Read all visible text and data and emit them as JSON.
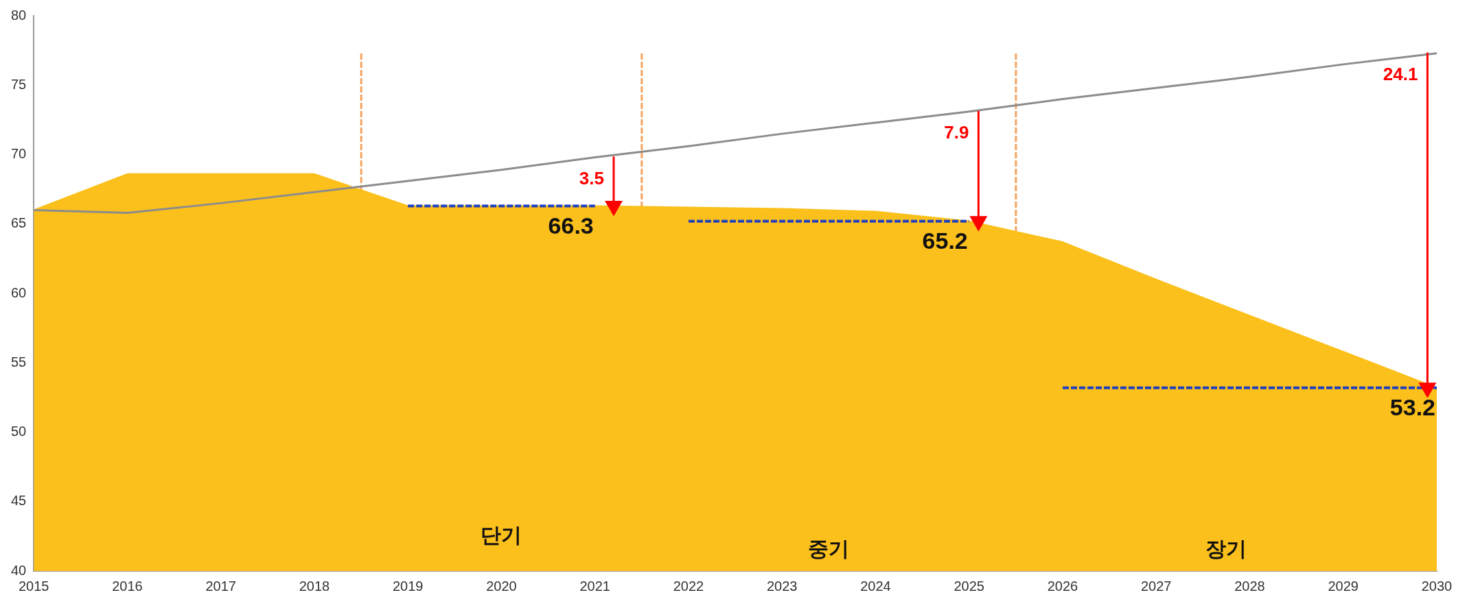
{
  "chart_data": {
    "type": "area",
    "xlim": [
      2015,
      2030
    ],
    "ylim": [
      40,
      80
    ],
    "xticks": [
      2015,
      2016,
      2017,
      2018,
      2019,
      2020,
      2021,
      2022,
      2023,
      2024,
      2025,
      2026,
      2027,
      2028,
      2029,
      2030
    ],
    "yticks": [
      40,
      45,
      50,
      55,
      60,
      65,
      70,
      75,
      80
    ],
    "grid": false,
    "legend": false,
    "marker": "none",
    "series": [
      {
        "color": "#fcc01c",
        "x": [
          2015,
          2016,
          2017,
          2018,
          2019,
          2020,
          2021,
          2022,
          2023,
          2024,
          2025,
          2026,
          2027,
          2028,
          2029,
          2030
        ],
        "values": [
          66,
          68.6,
          68.6,
          68.6,
          66.3,
          66.3,
          66.3,
          66.2,
          66.1,
          65.9,
          65.2,
          63.7,
          61,
          58.4,
          55.8,
          53.2
        ]
      },
      {
        "type": "line",
        "color": "#8c8c8c",
        "x": [
          2015,
          2016,
          2017,
          2018,
          2019,
          2020,
          2021,
          2022,
          2023,
          2024,
          2025,
          2026,
          2027,
          2028,
          2029,
          2030
        ],
        "values": [
          66,
          65.8,
          66.5,
          67.3,
          68.1,
          68.9,
          69.8,
          70.6,
          71.5,
          72.3,
          73.1,
          74,
          74.8,
          75.6,
          76.5,
          77.3
        ]
      },
      {
        "type": "line",
        "line_style": "dashed",
        "color": "#1f3fbf",
        "x": [
          2019,
          2021
        ],
        "values": [
          66.3,
          66.3
        ],
        "value_labels": [
          null,
          "66.3"
        ]
      },
      {
        "type": "line",
        "line_style": "dashed",
        "color": "#1f3fbf",
        "x": [
          2022,
          2025
        ],
        "values": [
          65.2,
          65.2
        ],
        "value_labels": [
          null,
          "65.2"
        ]
      },
      {
        "type": "line",
        "line_style": "dashed",
        "color": "#1f3fbf",
        "x": [
          2026,
          2030
        ],
        "values": [
          53.2,
          53.2
        ],
        "value_labels": [
          null,
          "53.2"
        ]
      },
      {
        "type": "line",
        "marker": "triangle",
        "color": "#ff0000",
        "name": "3.5",
        "x": [
          2021.2,
          2021.2
        ],
        "values": [
          69.8,
          66.3
        ]
      },
      {
        "type": "line",
        "marker": "triangle",
        "color": "#ff0000",
        "name": "7.9",
        "x": [
          2025.1,
          2025.1
        ],
        "values": [
          73.1,
          65.2
        ]
      },
      {
        "type": "line",
        "marker": "triangle",
        "color": "#ff0000",
        "name": "24.1",
        "x": [
          2029.9,
          2029.9
        ],
        "values": [
          77.3,
          53.2
        ]
      }
    ],
    "ref_lines": [
      {
        "axis": "x",
        "value": 2018.5,
        "color": "#f4a460",
        "line_style": "dashed"
      },
      {
        "axis": "x",
        "value": 2021.5,
        "color": "#f4a460",
        "line_style": "dashed"
      },
      {
        "axis": "x",
        "value": 2025.5,
        "color": "#f4a460",
        "line_style": "dashed"
      }
    ],
    "annotations": [
      "단기",
      "중기",
      "장기"
    ]
  }
}
